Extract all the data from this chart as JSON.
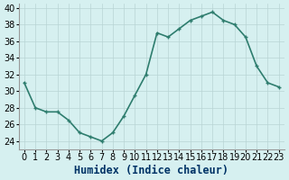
{
  "x": [
    0,
    1,
    2,
    3,
    4,
    5,
    6,
    7,
    8,
    9,
    10,
    11,
    12,
    13,
    14,
    15,
    16,
    17,
    18,
    19,
    20,
    21,
    22,
    23
  ],
  "y": [
    31,
    28,
    27.5,
    27.5,
    26.5,
    25,
    24.5,
    24,
    25,
    27,
    29.5,
    32,
    37,
    36.5,
    37.5,
    38.5,
    39,
    39.5,
    38.5,
    38,
    36.5,
    33,
    31,
    30.5
  ],
  "xlabel": "Humidex (Indice chaleur)",
  "ylabel": "",
  "xlim": [
    -0.5,
    23.5
  ],
  "ylim": [
    23,
    40.5
  ],
  "yticks": [
    24,
    26,
    28,
    30,
    32,
    34,
    36,
    38,
    40
  ],
  "xticks": [
    0,
    1,
    2,
    3,
    4,
    5,
    6,
    7,
    8,
    9,
    10,
    11,
    12,
    13,
    14,
    15,
    16,
    17,
    18,
    19,
    20,
    21,
    22,
    23
  ],
  "line_color": "#2e7d6e",
  "marker": "P",
  "bg_color": "#d6f0f0",
  "grid_color": "#b8d4d4",
  "xlabel_color": "#003366",
  "xlabel_fontsize": 8.5,
  "tick_fontsize": 7,
  "line_width": 1.2,
  "marker_size": 3
}
